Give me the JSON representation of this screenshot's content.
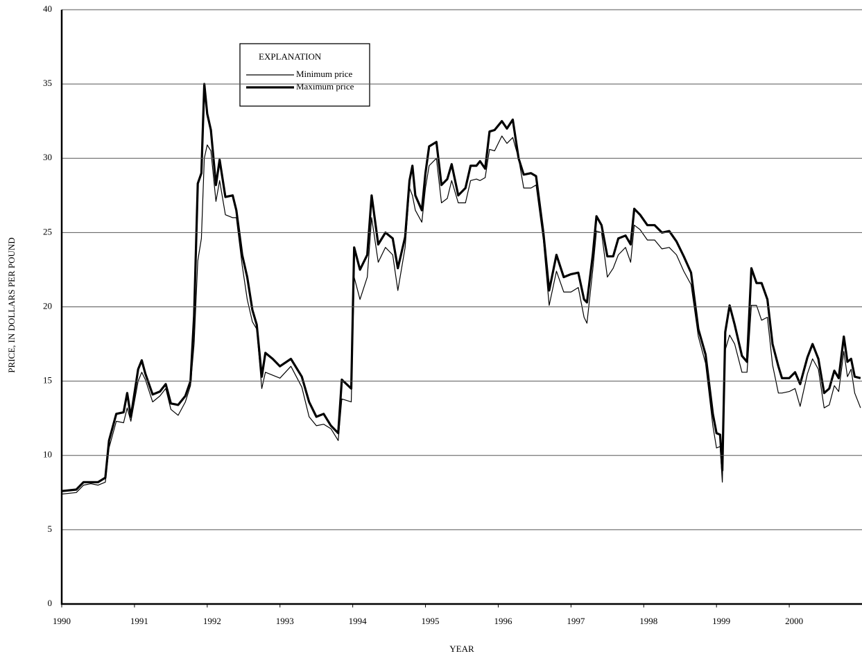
{
  "chart_data": {
    "type": "line",
    "x_label": "YEAR",
    "y_label": "PRICE, IN DOLLARS PER POUND",
    "legend_title": "EXPLANATION",
    "legend": "top-left",
    "grid": true,
    "xlim": [
      1990,
      2001
    ],
    "xticks": [
      1990,
      1991,
      1992,
      1993,
      1994,
      1995,
      1996,
      1997,
      1998,
      1999,
      2000
    ],
    "ylim": [
      0,
      40
    ],
    "yticks": [
      0,
      5,
      10,
      15,
      20,
      25,
      30,
      35,
      40
    ],
    "x": [
      1990.0,
      1990.2,
      1990.3,
      1990.4,
      1990.5,
      1990.6,
      1990.65,
      1990.75,
      1990.85,
      1990.9,
      1990.95,
      1991.05,
      1991.1,
      1991.15,
      1991.25,
      1991.35,
      1991.43,
      1991.5,
      1991.6,
      1991.7,
      1991.77,
      1991.82,
      1991.87,
      1991.92,
      1991.96,
      1992.0,
      1992.05,
      1992.12,
      1992.17,
      1992.25,
      1992.35,
      1992.4,
      1992.48,
      1992.55,
      1992.62,
      1992.68,
      1992.75,
      1992.8,
      1992.9,
      1993.0,
      1993.15,
      1993.3,
      1993.4,
      1993.5,
      1993.6,
      1993.7,
      1993.8,
      1993.85,
      1993.98,
      1994.02,
      1994.1,
      1994.2,
      1994.26,
      1994.35,
      1994.45,
      1994.55,
      1994.62,
      1994.72,
      1994.78,
      1994.82,
      1994.86,
      1994.95,
      1995.0,
      1995.05,
      1995.15,
      1995.22,
      1995.3,
      1995.36,
      1995.45,
      1995.55,
      1995.62,
      1995.7,
      1995.75,
      1995.82,
      1995.88,
      1995.95,
      1996.05,
      1996.12,
      1996.2,
      1996.28,
      1996.35,
      1996.45,
      1996.52,
      1996.62,
      1996.7,
      1996.8,
      1996.9,
      1997.0,
      1997.1,
      1997.18,
      1997.22,
      1997.3,
      1997.35,
      1997.42,
      1997.5,
      1997.58,
      1997.65,
      1997.75,
      1997.82,
      1997.87,
      1997.95,
      1998.05,
      1998.15,
      1998.25,
      1998.35,
      1998.45,
      1998.55,
      1998.65,
      1998.75,
      1998.85,
      1998.95,
      1999.0,
      1999.05,
      1999.08,
      1999.12,
      1999.18,
      1999.25,
      1999.35,
      1999.42,
      1999.48,
      1999.55,
      1999.62,
      1999.7,
      1999.77,
      1999.85,
      1999.9,
      2000.0,
      2000.08,
      2000.15,
      2000.25,
      2000.32,
      2000.4,
      2000.48,
      2000.55,
      2000.62,
      2000.68,
      2000.75,
      2000.8,
      2000.85,
      2000.9,
      2000.98
    ],
    "series": [
      {
        "name": "Minimum price",
        "color": "#000000",
        "width": 1.2,
        "values": [
          7.4,
          7.5,
          8.0,
          8.1,
          8.0,
          8.2,
          10.5,
          12.3,
          12.2,
          13.2,
          12.3,
          15.0,
          15.6,
          15.1,
          13.6,
          14.0,
          14.5,
          13.1,
          12.7,
          13.6,
          14.7,
          17.5,
          23.1,
          24.6,
          30.0,
          30.9,
          30.5,
          27.1,
          28.5,
          26.2,
          26.0,
          26.0,
          22.8,
          20.5,
          19.0,
          18.5,
          14.5,
          15.6,
          15.4,
          15.2,
          16.0,
          14.6,
          12.6,
          12.0,
          12.1,
          11.8,
          11.0,
          13.8,
          13.6,
          22.0,
          20.5,
          22.0,
          26.0,
          23.0,
          24.0,
          23.5,
          21.1,
          24.0,
          28.0,
          27.5,
          26.5,
          25.7,
          28.0,
          29.5,
          30.0,
          27.0,
          27.3,
          28.5,
          27.0,
          27.0,
          28.5,
          28.6,
          28.5,
          28.7,
          30.6,
          30.5,
          31.5,
          31.0,
          31.4,
          30.0,
          28.0,
          28.0,
          28.2,
          24.5,
          20.1,
          22.4,
          21.0,
          21.0,
          21.3,
          19.3,
          18.9,
          22.5,
          25.1,
          25.0,
          22.0,
          22.6,
          23.5,
          24.0,
          23.0,
          25.5,
          25.2,
          24.5,
          24.5,
          23.9,
          24.0,
          23.5,
          22.4,
          21.5,
          18.0,
          16.2,
          12.0,
          10.5,
          10.6,
          8.2,
          17.1,
          18.1,
          17.5,
          15.6,
          15.6,
          20.1,
          20.1,
          19.1,
          19.3,
          16.1,
          14.2,
          14.2,
          14.3,
          14.5,
          13.3,
          15.5,
          16.5,
          15.8,
          13.2,
          13.4,
          14.7,
          14.3,
          17.0,
          15.3,
          15.8,
          14.2,
          13.2
        ]
      },
      {
        "name": "Maximum price",
        "color": "#000000",
        "width": 3.2,
        "values": [
          7.6,
          7.7,
          8.2,
          8.2,
          8.2,
          8.5,
          11,
          12.8,
          12.9,
          14.2,
          12.6,
          15.8,
          16.4,
          15.5,
          14.1,
          14.3,
          14.8,
          13.5,
          13.4,
          14.0,
          15.0,
          19.4,
          28.3,
          29.0,
          35.0,
          33.0,
          31.9,
          28.2,
          29.9,
          27.4,
          27.5,
          26.5,
          23.5,
          22.0,
          19.8,
          18.8,
          15.3,
          16.9,
          16.5,
          16.0,
          16.5,
          15.3,
          13.6,
          12.6,
          12.8,
          12.0,
          11.5,
          15.1,
          14.5,
          24.0,
          22.5,
          23.5,
          27.5,
          24.2,
          25.0,
          24.6,
          22.6,
          24.7,
          28.5,
          29.5,
          27.5,
          26.5,
          29.0,
          30.8,
          31.1,
          28.2,
          28.6,
          29.6,
          27.5,
          28.0,
          29.5,
          29.5,
          29.8,
          29.3,
          31.8,
          31.9,
          32.5,
          32.0,
          32.6,
          30.0,
          28.9,
          29.0,
          28.8,
          25.0,
          21.1,
          23.5,
          22.0,
          22.2,
          22.3,
          20.5,
          20.3,
          23.5,
          26.1,
          25.5,
          23.4,
          23.4,
          24.6,
          24.8,
          24.2,
          26.6,
          26.2,
          25.5,
          25.5,
          25.0,
          25.1,
          24.4,
          23.4,
          22.3,
          18.5,
          16.8,
          12.8,
          11.5,
          11.4,
          9.0,
          18.3,
          20.1,
          18.8,
          16.7,
          16.3,
          22.6,
          21.6,
          21.6,
          20.5,
          17.5,
          16.0,
          15.2,
          15.2,
          15.6,
          14.8,
          16.6,
          17.5,
          16.5,
          14.2,
          14.5,
          15.7,
          15.2,
          18.0,
          16.3,
          16.5,
          15.3,
          15.2
        ]
      }
    ]
  }
}
